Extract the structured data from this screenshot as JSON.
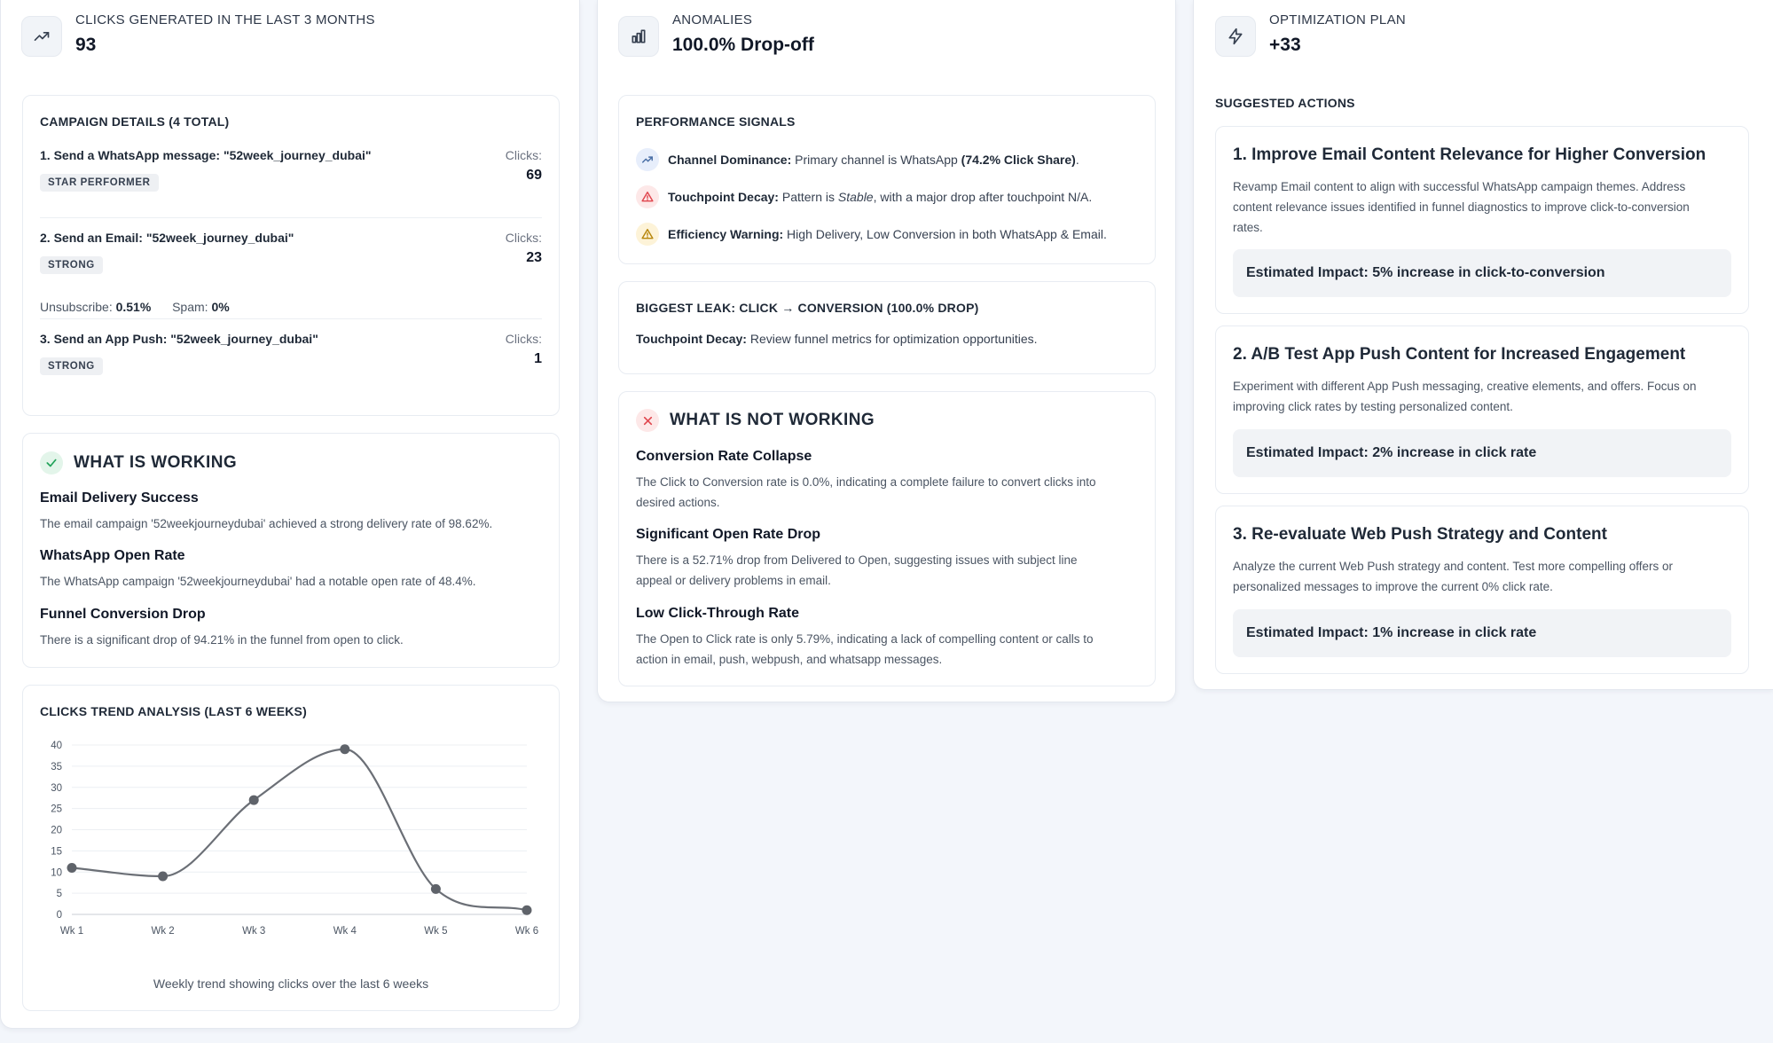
{
  "colors": {
    "background": "#f3f6fb",
    "card": "#ffffff",
    "success": "#22a35a",
    "danger": "#e0464e",
    "warning": "#e3a008",
    "info": "#4a6fa5",
    "line": "#6b6f76"
  },
  "summary": {
    "clicks": {
      "icon": "trending-up-icon",
      "label": "CLICKS GENERATED IN THE LAST 3 MONTHS",
      "value": "93"
    },
    "anomalies": {
      "icon": "bar-chart-icon",
      "label": "ANOMALIES",
      "value": "100.0% Drop-off"
    },
    "optimization": {
      "icon": "lightning-icon",
      "label": "OPTIMIZATION PLAN",
      "value": "+33"
    }
  },
  "campaigns": {
    "title": "CAMPAIGN DETAILS (4 TOTAL)",
    "items": [
      {
        "title": "1. Send a WhatsApp message: \"52week_journey_dubai\"",
        "clicks_label": "Clicks:",
        "clicks": "69",
        "badge": "STAR PERFORMER"
      },
      {
        "title": "2. Send an Email: \"52week_journey_dubai\"",
        "clicks_label": "Clicks:",
        "clicks": "23",
        "badge": "STRONG",
        "unsub_label": "Unsubscribe:",
        "unsub_value": "0.51%",
        "spam_label": "Spam:",
        "spam_value": "0%"
      },
      {
        "title": "3. Send an App Push: \"52week_journey_dubai\"",
        "clicks_label": "Clicks:",
        "clicks": "1",
        "badge": "STRONG"
      }
    ]
  },
  "working": {
    "title": "WHAT IS WORKING",
    "items": [
      {
        "title": "Email Delivery Success",
        "text": "The email campaign '52weekjourneydubai' achieved a strong delivery rate of 98.62%."
      },
      {
        "title": "WhatsApp Open Rate",
        "text": "The WhatsApp campaign '52weekjourneydubai' had a notable open rate of 48.4%."
      },
      {
        "title": "Funnel Conversion Drop",
        "text": "There is a significant drop of 94.21% in the funnel from open to click."
      }
    ]
  },
  "chart_data": {
    "type": "line",
    "title": "CLICKS TREND ANALYSIS (LAST 6 WEEKS)",
    "caption": "Weekly trend showing clicks over the last 6 weeks",
    "categories": [
      "Wk 1",
      "Wk 2",
      "Wk 3",
      "Wk 4",
      "Wk 5",
      "Wk 6"
    ],
    "values": [
      11,
      9,
      27,
      39,
      6,
      1
    ],
    "ylim": [
      0,
      40
    ],
    "yticks": [
      "0",
      "5",
      "10",
      "15",
      "20",
      "25",
      "30",
      "35",
      "40"
    ],
    "grid": true,
    "smooth": true
  },
  "signals": {
    "title": "PERFORMANCE SIGNALS",
    "items": [
      {
        "icon": "trending-up-icon",
        "label": "Channel Dominance:",
        "text_a": " Primary channel is WhatsApp ",
        "text_b": "(74.2% Click Share)",
        "text_c": "."
      },
      {
        "icon": "alert-triangle-icon",
        "label": "Touchpoint Decay:",
        "text_a": " Pattern is ",
        "text_b": "Stable",
        "text_c": ", with a major drop after touchpoint N/A."
      },
      {
        "icon": "warning-triangle-icon",
        "label": "Efficiency Warning:",
        "text_a": " High Delivery, Low Conversion in both WhatsApp & Email."
      }
    ]
  },
  "leak": {
    "title": "BIGGEST LEAK: CLICK → CONVERSION (100.0% DROP)",
    "label": "Touchpoint Decay:",
    "text": " Review funnel metrics for optimization opportunities."
  },
  "not_working": {
    "title": "WHAT IS NOT WORKING",
    "items": [
      {
        "title": "Conversion Rate Collapse",
        "line1": "The Click to Conversion rate is 0.0%, indicating a complete failure to convert clicks into",
        "line2": "desired actions."
      },
      {
        "title": "Significant Open Rate Drop",
        "line1": "There is a 52.71% drop from Delivered to Open, suggesting issues with subject line",
        "line2": "appeal or delivery problems in email."
      },
      {
        "title": "Low Click-Through Rate",
        "line1": "The Open to Click rate is only 5.79%, indicating a lack of compelling content or calls to",
        "line2": "action in email, push, webpush, and whatsapp messages."
      }
    ]
  },
  "actions": {
    "title": "SUGGESTED ACTIONS",
    "items": [
      {
        "title": "1. Improve Email Content Relevance for Higher Conversion",
        "lines": [
          "Revamp Email content to align with successful WhatsApp campaign themes. Address",
          "content relevance issues identified in funnel diagnostics to improve click-to-conversion",
          "rates."
        ],
        "impact": "Estimated Impact: 5% increase in click-to-conversion"
      },
      {
        "title": "2. A/B Test App Push Content for Increased Engagement",
        "lines": [
          "Experiment with different App Push messaging, creative elements, and offers. Focus on",
          "improving click rates by testing personalized content."
        ],
        "impact": "Estimated Impact: 2% increase in click rate"
      },
      {
        "title": "3. Re-evaluate Web Push Strategy and Content",
        "lines": [
          "Analyze the current Web Push strategy and content. Test more compelling offers or",
          "personalized messages to improve the current 0% click rate."
        ],
        "impact": "Estimated Impact: 1% increase in click rate"
      }
    ]
  }
}
